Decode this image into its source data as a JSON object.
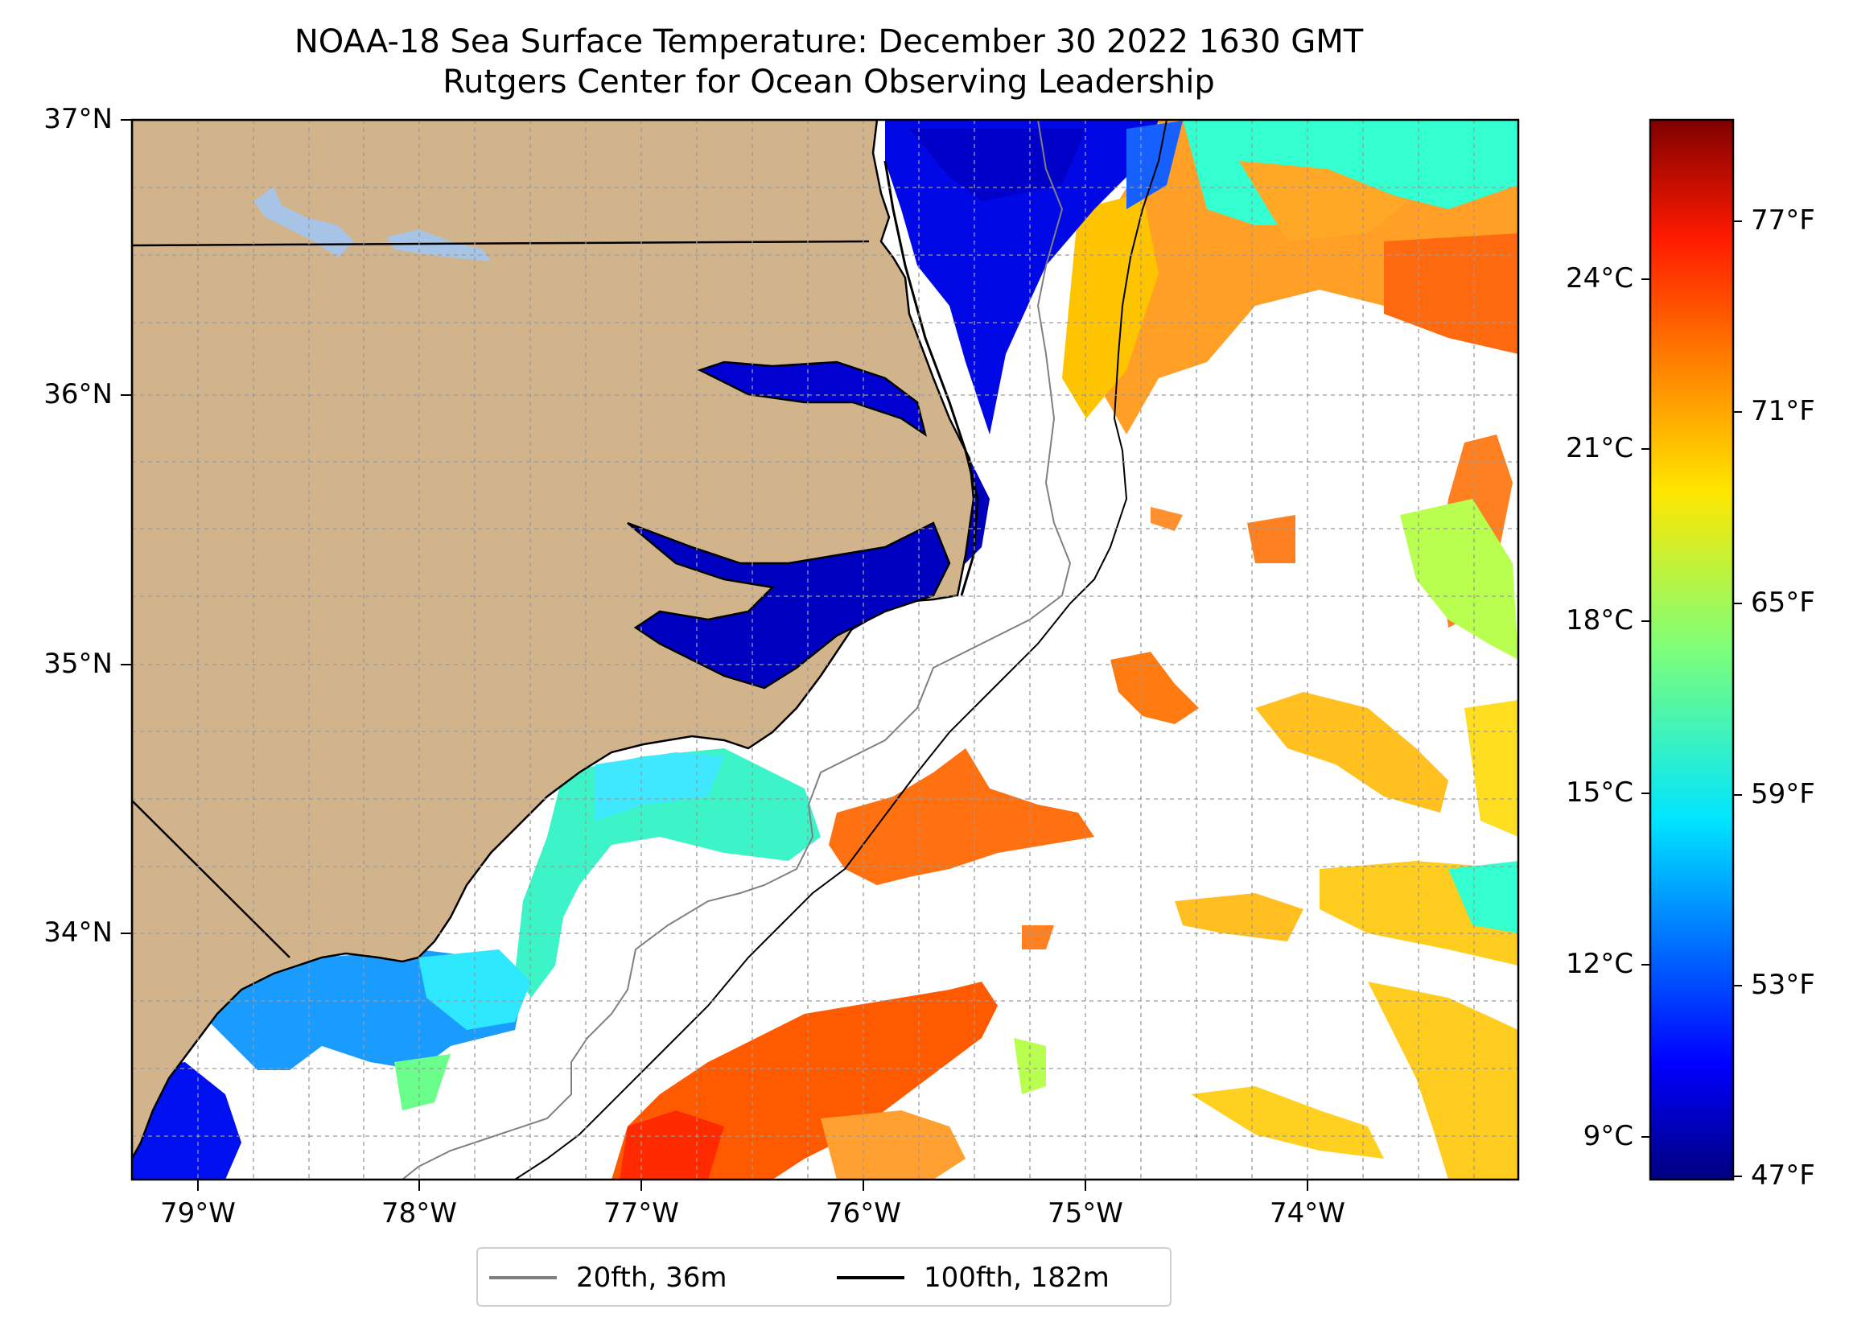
{
  "title": "NOAA-18 Sea Surface Temperature: December 30 2022 1630 GMT",
  "subtitle": "Rutgers Center for Ocean Observing Leadership",
  "lat_labels": [
    "37°N",
    "36°N",
    "35°N",
    "34°N"
  ],
  "lon_labels": [
    "79°W",
    "78°W",
    "77°W",
    "76°W",
    "75°W",
    "74°W"
  ],
  "map_extent": {
    "lon_min": -79.3,
    "lon_max": -73.05,
    "lat_min": 33.1,
    "lat_max": 37.0
  },
  "colors": {
    "land": "#d2b48c",
    "lakes": "#a7c4e6",
    "isobath_20fth": "#808080",
    "isobath_100fth": "#000000",
    "clouds": "#ffffff"
  },
  "colorbar": {
    "colormap": "jet",
    "celsius_labels": [
      "24°C",
      "21°C",
      "18°C",
      "15°C",
      "12°C",
      "9°C"
    ],
    "fahrenheit_labels": [
      "77°F",
      "71°F",
      "65°F",
      "59°F",
      "53°F",
      "47°F"
    ]
  },
  "legend": [
    {
      "label": "20fth, 36m",
      "color": "#808080"
    },
    {
      "label": "100fth, 182m",
      "color": "#000000"
    }
  ]
}
